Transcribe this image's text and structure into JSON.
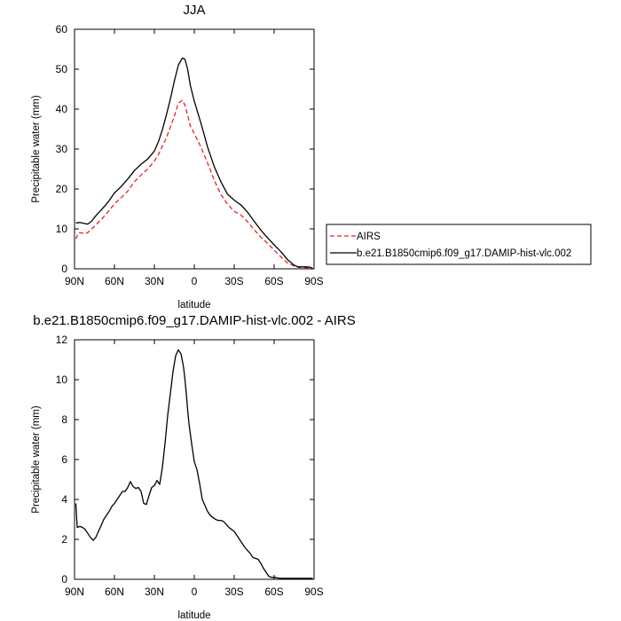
{
  "chart_data": [
    {
      "type": "line",
      "title": "JJA",
      "xlabel": "latitude",
      "ylabel": "Precipitable water (mm)",
      "xlim": [
        90,
        -90
      ],
      "ylim": [
        0,
        60
      ],
      "x_ticks": [
        90,
        60,
        30,
        0,
        -30,
        -60,
        -90
      ],
      "x_tick_labels": [
        "90N",
        "60N",
        "30N",
        "0",
        "30S",
        "60S",
        "90S"
      ],
      "y_ticks": [
        0,
        10,
        20,
        30,
        40,
        50,
        60
      ],
      "y_tick_labels": [
        "0",
        "10",
        "20",
        "30",
        "40",
        "50",
        "60"
      ],
      "grid": false,
      "legend": {
        "placement": "right",
        "entries": [
          {
            "name": "AIRS",
            "color": "#e8211e",
            "style": "dashed"
          },
          {
            "name": "b.e21.B1850cmip6.f09_g17.DAMIP-hist-vlc.002",
            "color": "#000000",
            "style": "solid"
          }
        ]
      },
      "series": [
        {
          "name": "AIRS",
          "color": "#e8211e",
          "dash": true,
          "x": [
            89,
            87,
            85,
            82,
            80,
            77,
            74,
            70,
            65,
            60,
            55,
            50,
            45,
            40,
            35,
            30,
            27,
            24,
            21,
            18,
            15,
            12,
            9,
            7,
            5,
            3,
            0,
            -5,
            -10,
            -15,
            -20,
            -25,
            -30,
            -35,
            -40,
            -45,
            -50,
            -55,
            -60,
            -65,
            -70,
            -75,
            -78,
            -81,
            -84,
            -87,
            -89
          ],
          "y": [
            7.5,
            9,
            9,
            8.8,
            9.1,
            10,
            11,
            12.3,
            14.2,
            16.3,
            17.8,
            19.5,
            21.8,
            23.5,
            25,
            27,
            28.6,
            30.7,
            32.8,
            35.5,
            38.2,
            41.5,
            42.2,
            41,
            38.5,
            35.8,
            33.9,
            30.5,
            26.5,
            22.2,
            18.6,
            16.2,
            14.4,
            13.5,
            11.8,
            9.8,
            7.9,
            6.4,
            4.7,
            3,
            1.5,
            0.7,
            0.4,
            0.3,
            0.3,
            0.2,
            0.2
          ]
        },
        {
          "name": "b.e21.B1850cmip6.f09_g17.DAMIP-hist-vlc.002",
          "color": "#000000",
          "dash": false,
          "x": [
            89,
            86,
            83,
            80,
            77,
            74,
            70,
            65,
            60,
            55,
            50,
            45,
            40,
            35,
            30,
            27,
            24,
            21,
            18,
            15,
            12,
            9,
            7,
            5,
            3,
            0,
            -5,
            -10,
            -15,
            -20,
            -25,
            -30,
            -35,
            -40,
            -45,
            -50,
            -55,
            -60,
            -65,
            -70,
            -75,
            -78,
            -81,
            -84,
            -87,
            -89
          ],
          "y": [
            11.5,
            11.6,
            11.4,
            11.2,
            12,
            13.3,
            14.7,
            16.6,
            19,
            20.6,
            22.5,
            24.6,
            26.2,
            27.5,
            29.5,
            31.8,
            34.8,
            38.5,
            42.5,
            47,
            51,
            52.8,
            52.5,
            50,
            46,
            42,
            36.5,
            30.5,
            25.6,
            21.8,
            18.7,
            17.2,
            16,
            14.2,
            11.9,
            9.7,
            7.8,
            6,
            4.3,
            2.3,
            0.9,
            0.5,
            0.5,
            0.5,
            0.4,
            0.1
          ]
        }
      ]
    },
    {
      "type": "line",
      "title": "b.e21.B1850cmip6.f09_g17.DAMIP-hist-vlc.002 - AIRS",
      "xlabel": "latitude",
      "ylabel": "Precipitable water (mm)",
      "xlim": [
        90,
        -90
      ],
      "ylim": [
        0,
        12
      ],
      "x_ticks": [
        90,
        60,
        30,
        0,
        -30,
        -60,
        -90
      ],
      "x_tick_labels": [
        "90N",
        "60N",
        "30N",
        "0",
        "30S",
        "60S",
        "90S"
      ],
      "y_ticks": [
        0,
        2,
        4,
        6,
        8,
        10,
        12
      ],
      "y_tick_labels": [
        "0",
        "2",
        "4",
        "6",
        "8",
        "10",
        "12"
      ],
      "grid": false,
      "series": [
        {
          "color": "#000000",
          "dash": false,
          "x": [
            89,
            88,
            86,
            84,
            82,
            80,
            78,
            76,
            74,
            72,
            70,
            68,
            66,
            64,
            62,
            60,
            58,
            56,
            54,
            52,
            50,
            48,
            46,
            44,
            42,
            40,
            38,
            36,
            34,
            32,
            30,
            28,
            26,
            24,
            22,
            20,
            18,
            16,
            14,
            12,
            10,
            8,
            7,
            6,
            5,
            4,
            2,
            0,
            -2,
            -4,
            -6,
            -8,
            -10,
            -12,
            -14,
            -16,
            -18,
            -20,
            -22,
            -24,
            -26,
            -28,
            -30,
            -32,
            -34,
            -36,
            -38,
            -40,
            -42,
            -44,
            -46,
            -48,
            -50,
            -52,
            -54,
            -56,
            -58,
            -60,
            -62,
            -64,
            -66,
            -68,
            -70,
            -72,
            -74,
            -76,
            -78,
            -80,
            -82,
            -84,
            -86,
            -88,
            -89
          ],
          "y": [
            3.8,
            2.6,
            2.65,
            2.6,
            2.5,
            2.3,
            2.1,
            1.95,
            2.1,
            2.4,
            2.7,
            3.0,
            3.2,
            3.4,
            3.65,
            3.8,
            4.0,
            4.2,
            4.4,
            4.4,
            4.6,
            4.9,
            4.65,
            4.55,
            4.6,
            4.4,
            3.8,
            3.75,
            4.2,
            4.6,
            4.7,
            4.95,
            4.75,
            5.6,
            6.8,
            8.2,
            9.3,
            10.4,
            11.2,
            11.5,
            11.3,
            10.6,
            10.0,
            9.3,
            8.5,
            7.8,
            6.8,
            5.9,
            5.5,
            4.8,
            4.0,
            3.7,
            3.4,
            3.2,
            3.1,
            3.0,
            2.95,
            2.95,
            2.9,
            2.75,
            2.6,
            2.5,
            2.4,
            2.2,
            2.0,
            1.8,
            1.6,
            1.45,
            1.3,
            1.1,
            1.05,
            1.0,
            0.8,
            0.55,
            0.35,
            0.15,
            0.1,
            0.1,
            0.08,
            0.05,
            0.05,
            0.05,
            0.05,
            0.05,
            0.05,
            0.05,
            0.05,
            0.05,
            0.05,
            0.05,
            0.05,
            0.05,
            0.05
          ]
        }
      ]
    }
  ]
}
